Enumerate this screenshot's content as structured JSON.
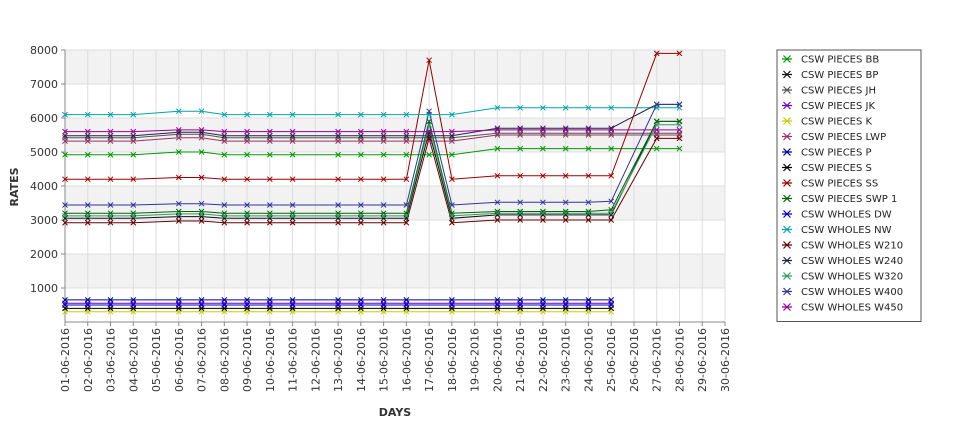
{
  "chart_data": {
    "type": "line",
    "title": "",
    "xlabel": "DAYS",
    "ylabel": "RATES",
    "ylim": [
      0,
      8000
    ],
    "yticks": [
      1000,
      2000,
      3000,
      4000,
      5000,
      6000,
      7000,
      8000
    ],
    "grid": "alternating horizontal bands",
    "legend_position": "right",
    "categories": [
      "01-06-2016",
      "02-06-2016",
      "03-06-2016",
      "04-06-2016",
      "05-06-2016",
      "06-06-2016",
      "07-06-2016",
      "08-06-2016",
      "09-06-2016",
      "10-06-2016",
      "11-06-2016",
      "12-06-2016",
      "13-06-2016",
      "14-06-2016",
      "15-06-2016",
      "16-06-2016",
      "17-06-2016",
      "18-06-2016",
      "19-06-2016",
      "20-06-2016",
      "21-06-2016",
      "22-06-2016",
      "23-06-2016",
      "24-06-2016",
      "25-06-2016",
      "26-06-2016",
      "27-06-2016",
      "28-06-2016",
      "29-06-2016",
      "30-06-2016"
    ],
    "series": [
      {
        "name": "CSW PIECES BB",
        "color": "#009900",
        "values": [
          4920,
          4920,
          4920,
          4920,
          null,
          5000,
          5000,
          4920,
          4920,
          4920,
          4920,
          null,
          4920,
          4920,
          4920,
          4920,
          4920,
          4920,
          null,
          5100,
          5100,
          5100,
          5100,
          5100,
          5100,
          null,
          5100,
          5100,
          null,
          null
        ]
      },
      {
        "name": "CSW PIECES BP",
        "color": "#111111",
        "values": [
          3050,
          3050,
          3050,
          3050,
          null,
          3100,
          3100,
          3050,
          3050,
          3050,
          3050,
          null,
          3050,
          3050,
          3050,
          3050,
          5600,
          3050,
          null,
          3150,
          3150,
          3150,
          3150,
          3150,
          3150,
          null,
          5900,
          5900,
          null,
          null
        ]
      },
      {
        "name": "CSW PIECES JH",
        "color": "#555555",
        "values": [
          5420,
          5420,
          5420,
          5420,
          null,
          5520,
          5520,
          5420,
          5420,
          5420,
          5420,
          null,
          5420,
          5420,
          5420,
          5420,
          5420,
          5420,
          null,
          5550,
          5550,
          5550,
          5550,
          5550,
          5550,
          null,
          5550,
          5550,
          null,
          null
        ]
      },
      {
        "name": "CSW PIECES JK",
        "color": "#6600cc",
        "values": [
          550,
          550,
          550,
          550,
          null,
          550,
          550,
          550,
          550,
          550,
          550,
          null,
          550,
          550,
          550,
          550,
          null,
          550,
          null,
          550,
          550,
          550,
          550,
          550,
          550,
          null,
          null,
          null,
          null,
          null
        ]
      },
      {
        "name": "CSW PIECES K",
        "color": "#cccc00",
        "values": [
          300,
          300,
          300,
          300,
          null,
          300,
          300,
          300,
          300,
          300,
          300,
          null,
          300,
          300,
          300,
          300,
          null,
          300,
          null,
          300,
          300,
          300,
          300,
          300,
          300,
          null,
          null,
          null,
          null,
          null
        ]
      },
      {
        "name": "CSW PIECES LWP",
        "color": "#993366",
        "values": [
          5320,
          5320,
          5320,
          5320,
          null,
          5420,
          5420,
          5320,
          5320,
          5320,
          5320,
          null,
          5320,
          5320,
          5320,
          5320,
          5320,
          5320,
          null,
          5500,
          5500,
          5500,
          5500,
          5500,
          5500,
          null,
          5500,
          5500,
          null,
          null
        ]
      },
      {
        "name": "CSW PIECES P",
        "color": "#000099",
        "values": [
          650,
          650,
          650,
          650,
          null,
          650,
          650,
          650,
          650,
          650,
          650,
          null,
          650,
          650,
          650,
          650,
          null,
          650,
          null,
          650,
          650,
          650,
          650,
          650,
          650,
          null,
          null,
          null,
          null,
          null
        ]
      },
      {
        "name": "CSW PIECES S",
        "color": "#000000",
        "values": [
          400,
          400,
          400,
          400,
          null,
          400,
          400,
          400,
          400,
          400,
          400,
          null,
          400,
          400,
          400,
          400,
          null,
          400,
          null,
          400,
          400,
          400,
          400,
          400,
          400,
          null,
          null,
          null,
          null,
          null
        ]
      },
      {
        "name": "CSW PIECES SS",
        "color": "#990000",
        "values": [
          4200,
          4200,
          4200,
          4200,
          null,
          4250,
          4250,
          4200,
          4200,
          4200,
          4200,
          null,
          4200,
          4200,
          4200,
          4200,
          7700,
          4200,
          null,
          4300,
          4300,
          4300,
          4300,
          4300,
          4300,
          null,
          7900,
          7900,
          null,
          null
        ]
      },
      {
        "name": "CSW PIECES SWP 1",
        "color": "#006600",
        "values": [
          3200,
          3200,
          3200,
          3200,
          null,
          3250,
          3250,
          3200,
          3200,
          3200,
          3200,
          null,
          3200,
          3200,
          3200,
          3200,
          5900,
          3200,
          null,
          3250,
          3250,
          3250,
          3250,
          3250,
          3300,
          null,
          5900,
          5900,
          null,
          null
        ]
      },
      {
        "name": "CSW WHOLES DW",
        "color": "#0000cc",
        "values": [
          500,
          500,
          500,
          500,
          null,
          500,
          500,
          500,
          500,
          500,
          500,
          null,
          500,
          500,
          500,
          500,
          null,
          500,
          null,
          500,
          500,
          500,
          500,
          500,
          500,
          null,
          null,
          null,
          null,
          null
        ]
      },
      {
        "name": "CSW WHOLES NW",
        "color": "#00a6a6",
        "values": [
          6100,
          6100,
          6100,
          6100,
          null,
          6200,
          6200,
          6100,
          6100,
          6100,
          6100,
          null,
          6100,
          6100,
          6100,
          6100,
          6100,
          6100,
          null,
          6300,
          6300,
          6300,
          6300,
          6300,
          6300,
          null,
          6300,
          6300,
          null,
          null
        ]
      },
      {
        "name": "CSW WHOLES W210",
        "color": "#660000",
        "values": [
          2920,
          2920,
          2920,
          2920,
          null,
          2970,
          2970,
          2920,
          2920,
          2920,
          2920,
          null,
          2920,
          2920,
          2920,
          2920,
          5400,
          2920,
          null,
          3000,
          3000,
          3000,
          3000,
          3000,
          3000,
          null,
          5400,
          5400,
          null,
          null
        ]
      },
      {
        "name": "CSW WHOLES W240",
        "color": "#222244",
        "values": [
          5480,
          5480,
          5480,
          5480,
          null,
          5580,
          5580,
          5480,
          5480,
          5480,
          5480,
          null,
          5480,
          5480,
          5480,
          5480,
          5480,
          5480,
          null,
          5700,
          5700,
          5700,
          5700,
          5700,
          5700,
          null,
          6400,
          6400,
          null,
          null
        ]
      },
      {
        "name": "CSW WHOLES W320",
        "color": "#339966",
        "values": [
          3120,
          3120,
          3120,
          3120,
          null,
          3180,
          3180,
          3120,
          3120,
          3120,
          3120,
          null,
          3120,
          3120,
          3120,
          3120,
          5800,
          3120,
          null,
          3200,
          3200,
          3200,
          3200,
          3200,
          3200,
          null,
          5800,
          5800,
          null,
          null
        ]
      },
      {
        "name": "CSW WHOLES W400",
        "color": "#333399",
        "values": [
          3440,
          3440,
          3440,
          3440,
          null,
          3480,
          3480,
          3440,
          3440,
          3440,
          3440,
          null,
          3440,
          3440,
          3440,
          3440,
          6200,
          3440,
          null,
          3520,
          3520,
          3520,
          3520,
          3520,
          3550,
          null,
          6400,
          6400,
          null,
          null
        ]
      },
      {
        "name": "CSW WHOLES W450",
        "color": "#990099",
        "values": [
          5600,
          5600,
          5600,
          5600,
          null,
          5650,
          5650,
          5600,
          5600,
          5600,
          5600,
          null,
          5600,
          5600,
          5600,
          5600,
          5600,
          5600,
          null,
          5650,
          5650,
          5650,
          5650,
          5650,
          5650,
          null,
          5650,
          5650,
          null,
          null
        ]
      }
    ]
  }
}
